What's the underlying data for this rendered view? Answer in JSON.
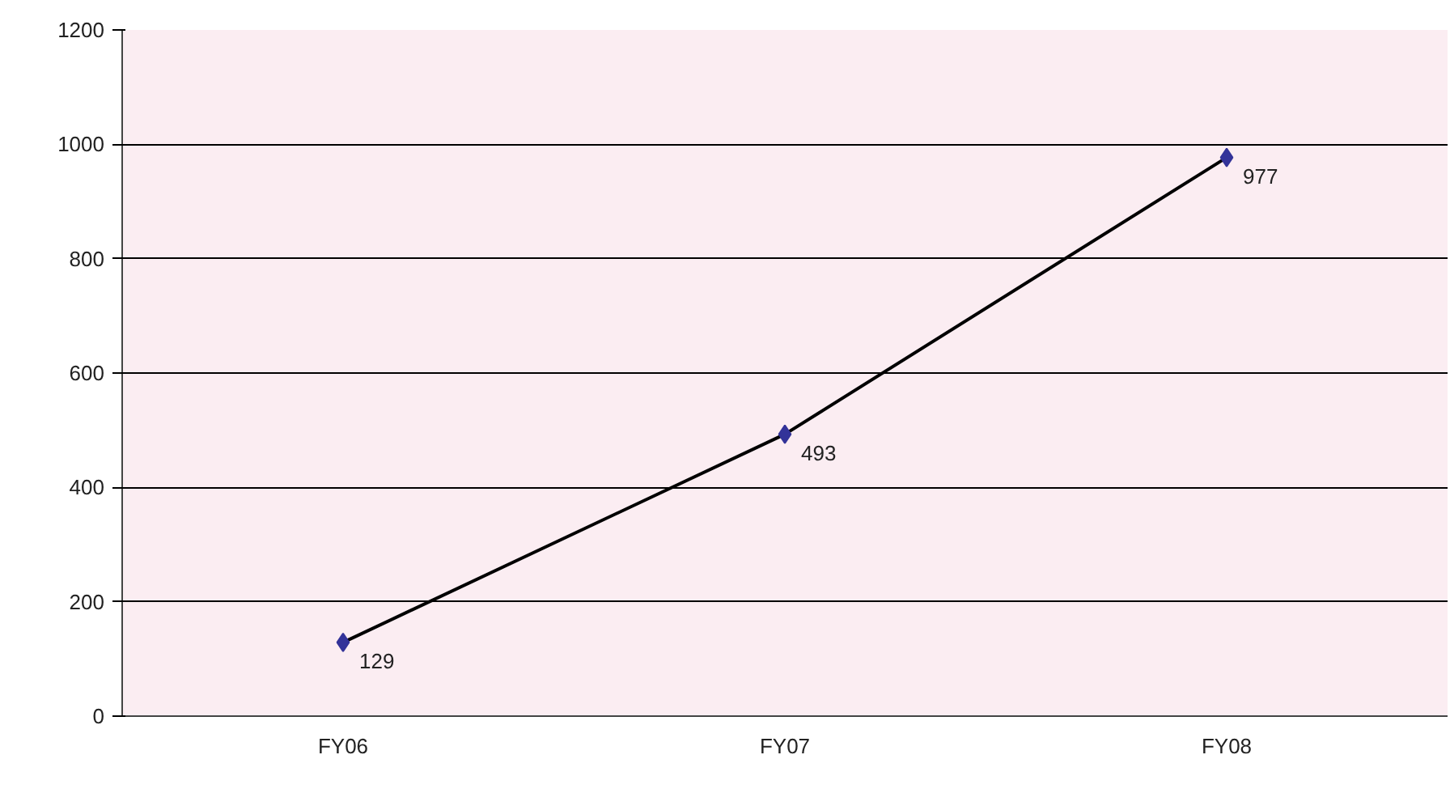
{
  "chart_data": {
    "type": "line",
    "categories": [
      "FY06",
      "FY07",
      "FY08"
    ],
    "series": [
      {
        "color": "#333399",
        "values": [
          129,
          493,
          977
        ]
      }
    ],
    "ylim": [
      0,
      1200
    ],
    "yticks": [
      0,
      200,
      400,
      600,
      800,
      1000,
      1200
    ],
    "grid": "y",
    "marker": "diamond",
    "line_style": "solid",
    "data_labels": true
  }
}
